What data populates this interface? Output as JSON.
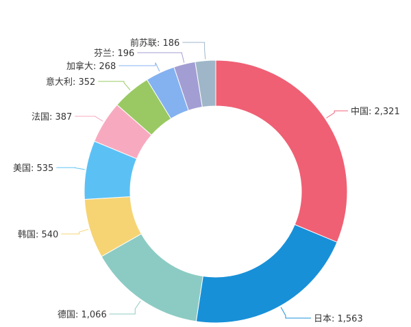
{
  "chart_data": {
    "type": "pie",
    "variant": "donut",
    "start_angle_deg": 90,
    "direction": "clockwise",
    "labels_outside": true,
    "slices": [
      {
        "label": "中国",
        "value": 2321,
        "display": "中国: 2,321",
        "color": "#ef6074"
      },
      {
        "label": "日本",
        "value": 1563,
        "display": "日本: 1,563",
        "color": "#1890d8"
      },
      {
        "label": "德国",
        "value": 1066,
        "display": "德国: 1,066",
        "color": "#8ccbc3"
      },
      {
        "label": "韩国",
        "value": 540,
        "display": "韩国: 540",
        "color": "#f6d473"
      },
      {
        "label": "美国",
        "value": 535,
        "display": "美国: 535",
        "color": "#5bc1f5"
      },
      {
        "label": "法国",
        "value": 387,
        "display": "法国: 387",
        "color": "#f7aabf"
      },
      {
        "label": "意大利",
        "value": 352,
        "display": "意大利: 352",
        "color": "#9ac963"
      },
      {
        "label": "加拿大",
        "value": 268,
        "display": "加拿大: 268",
        "color": "#84b1f0"
      },
      {
        "label": "芬兰",
        "value": 196,
        "display": "芬兰: 196",
        "color": "#a29ed3"
      },
      {
        "label": "前苏联",
        "value": 186,
        "display": "前苏联: 186",
        "color": "#9fb6c8"
      }
    ]
  }
}
